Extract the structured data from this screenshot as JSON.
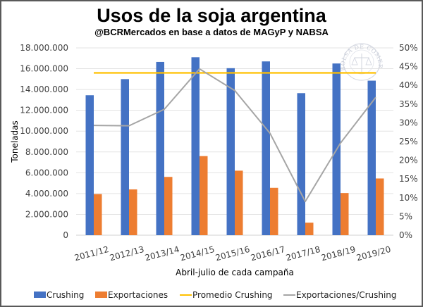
{
  "chart_data": {
    "type": "bar",
    "title": "Usos de la soja argentina",
    "subtitle": "@BCRMercados  en base a datos de MAGyP y NABSA",
    "xlabel": "Abril-julio de cada campaña",
    "ylabel": "Toneladas",
    "categories": [
      "2011/12",
      "2012/13",
      "2013/14",
      "2014/15",
      "2015/16",
      "2016/17",
      "2017/18",
      "2018/19",
      "2019/20"
    ],
    "ylim": [
      0,
      18000000
    ],
    "y_ticks": [
      "0",
      "2.000.000",
      "4.000.000",
      "6.000.000",
      "8.000.000",
      "10.000.000",
      "12.000.000",
      "14.000.000",
      "16.000.000",
      "18.000.000"
    ],
    "y2lim": [
      0,
      0.5
    ],
    "y2_ticks": [
      "0%",
      "5%",
      "10%",
      "15%",
      "20%",
      "25%",
      "30%",
      "35%",
      "40%",
      "45%",
      "50%"
    ],
    "grid": true,
    "legend_position": "bottom",
    "series": [
      {
        "name": "Crushing",
        "type": "bar",
        "axis": "left",
        "color": "#4472C4",
        "values": [
          13450000,
          15000000,
          16650000,
          17100000,
          16050000,
          16700000,
          13650000,
          16500000,
          14850000
        ]
      },
      {
        "name": "Exportaciones",
        "type": "bar",
        "axis": "left",
        "color": "#ED7D31",
        "values": [
          3950000,
          4400000,
          5600000,
          7600000,
          6200000,
          4550000,
          1200000,
          4050000,
          5450000
        ]
      },
      {
        "name": "Promedio Crushing",
        "type": "line",
        "axis": "left",
        "color": "#FFC000",
        "values": [
          15600000,
          15600000,
          15600000,
          15600000,
          15600000,
          15600000,
          15600000,
          15600000,
          15600000
        ]
      },
      {
        "name": "Exportaciones/Crushing",
        "type": "line",
        "axis": "right",
        "color": "#A5A5A5",
        "values": [
          0.293,
          0.292,
          0.336,
          0.444,
          0.386,
          0.272,
          0.09,
          0.246,
          0.368
        ]
      }
    ]
  },
  "watermark": {
    "text": "BOLSA DE COMERCIO DE ROSARIO"
  }
}
